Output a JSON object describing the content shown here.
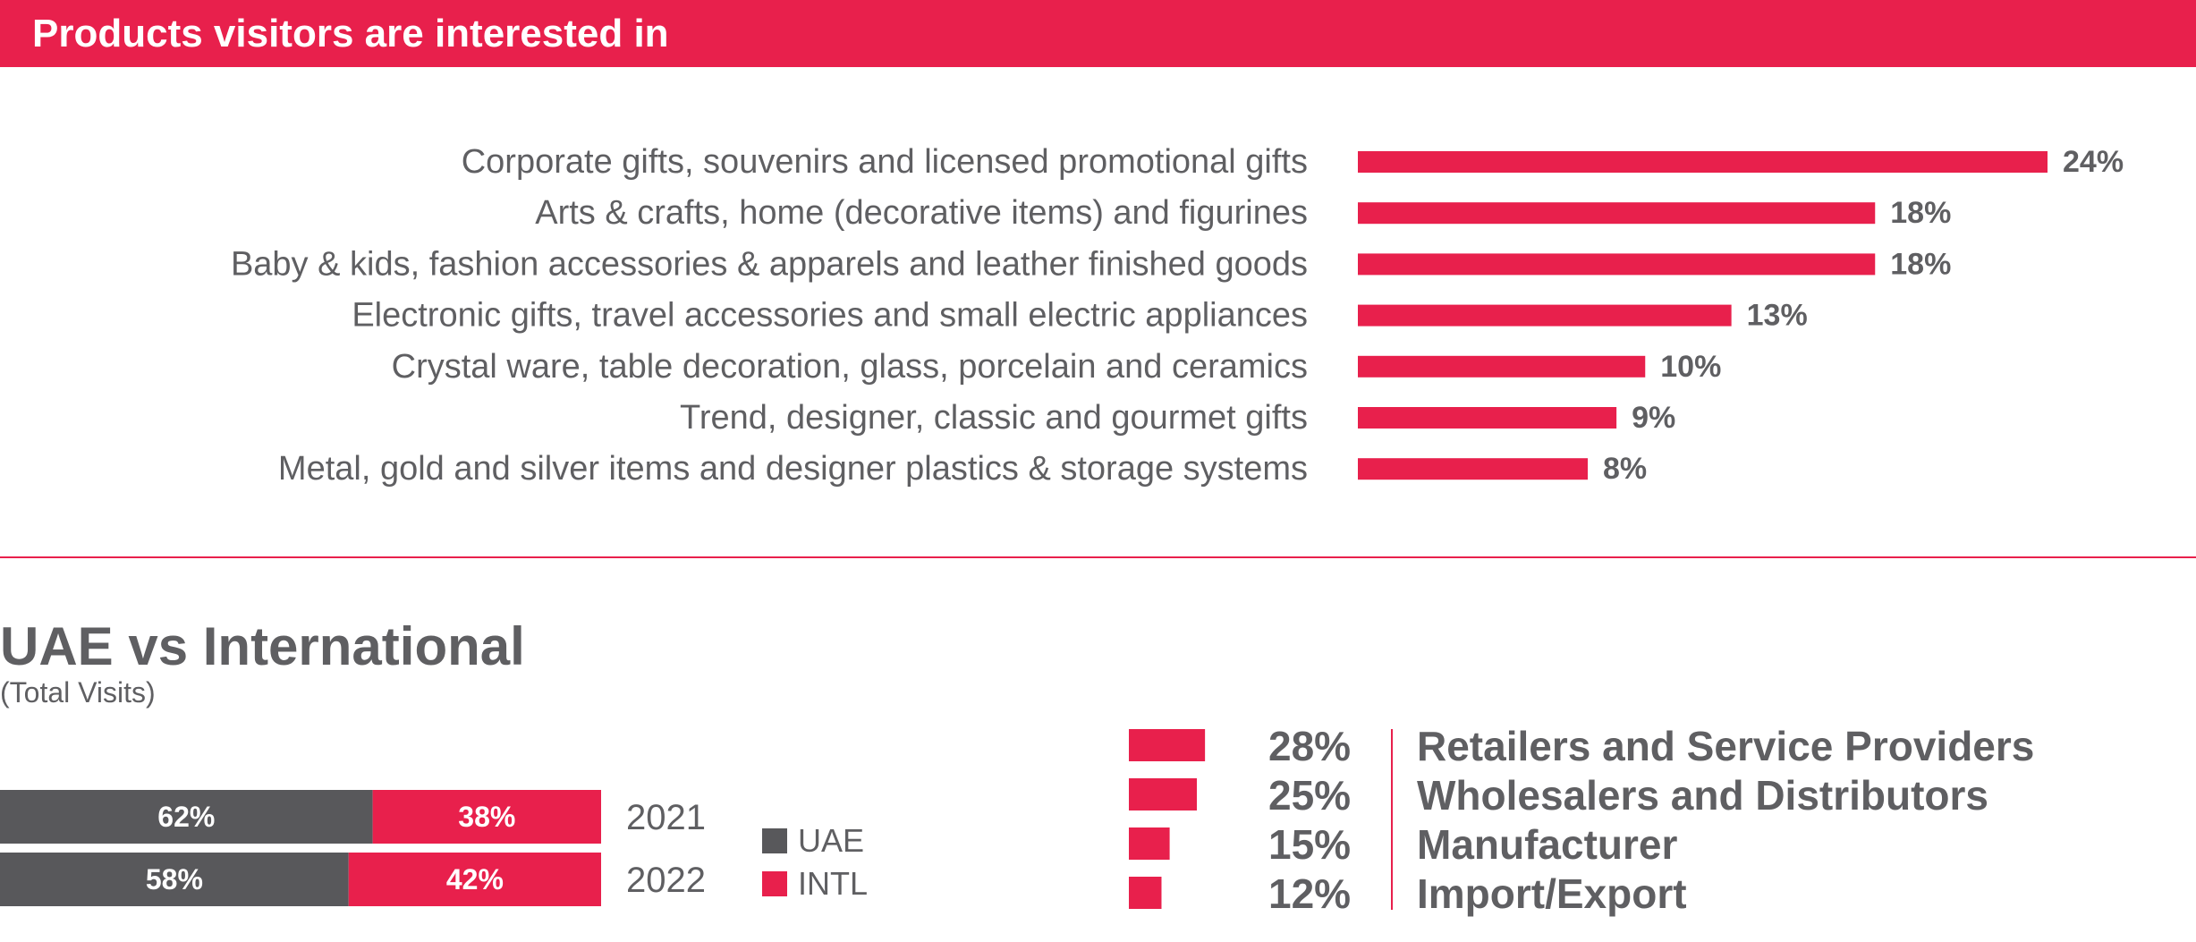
{
  "header": {
    "title": "Products visitors are interested in"
  },
  "colors": {
    "accent": "#e8204c",
    "dark": "#58585b",
    "text": "#5f5f62",
    "white": "#ffffff"
  },
  "uae_section": {
    "title": "UAE vs International",
    "subtitle": "(Total Visits)"
  },
  "chart_data": [
    {
      "type": "bar",
      "orientation": "horizontal",
      "categories": [
        "Corporate gifts, souvenirs and licensed promotional gifts",
        "Arts & crafts, home (decorative items) and figurines",
        "Baby & kids, fashion accessories & apparels and leather finished goods",
        "Electronic gifts, travel accessories and small electric appliances",
        "Crystal ware, table decoration, glass, porcelain and ceramics",
        "Trend, designer, classic and gourmet gifts",
        "Metal, gold and silver items and designer plastics & storage systems"
      ],
      "values": [
        24,
        18,
        18,
        13,
        10,
        9,
        8
      ],
      "value_labels": [
        "24%",
        "18%",
        "18%",
        "13%",
        "10%",
        "9%",
        "8%"
      ],
      "xlim": [
        0,
        24
      ]
    },
    {
      "type": "bar",
      "stacked": true,
      "orientation": "horizontal",
      "categories": [
        "2021",
        "2022"
      ],
      "series": [
        {
          "name": "UAE",
          "values": [
            62,
            58
          ],
          "labels": [
            "62%",
            "58%"
          ],
          "color": "#58585b"
        },
        {
          "name": "INTL",
          "values": [
            38,
            42
          ],
          "labels": [
            "38%",
            "42%"
          ],
          "color": "#e8204c"
        }
      ],
      "xlim": [
        0,
        100
      ],
      "legend": "right"
    },
    {
      "type": "bar",
      "orientation": "horizontal",
      "categories": [
        "Retailers and Service Providers",
        "Wholesalers and Distributors",
        "Manufacturer",
        "Import/Export"
      ],
      "values": [
        28,
        25,
        15,
        12
      ],
      "value_labels": [
        "28%",
        "25%",
        "15%",
        "12%"
      ]
    }
  ]
}
